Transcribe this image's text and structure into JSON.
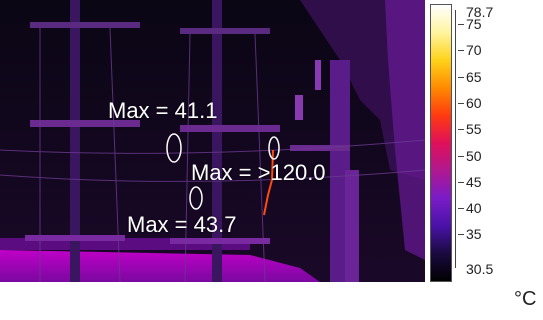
{
  "image": {
    "annotations": [
      {
        "label": "Max = 41.1"
      },
      {
        "label": "Max = >120.0"
      },
      {
        "label": "Max = 43.7"
      }
    ]
  },
  "scale": {
    "top": "78.7",
    "bottom": "30.5",
    "ticks": [
      "75",
      "70",
      "65",
      "60",
      "55",
      "50",
      "45",
      "40",
      "35"
    ],
    "unit": "°C",
    "colors": [
      "#ffffff",
      "#fff4a0",
      "#ffd21a",
      "#ff8a00",
      "#ff3a10",
      "#e0105a",
      "#b01890",
      "#7a1cc8",
      "#4a12a8",
      "#1a0a40",
      "#000000"
    ]
  }
}
